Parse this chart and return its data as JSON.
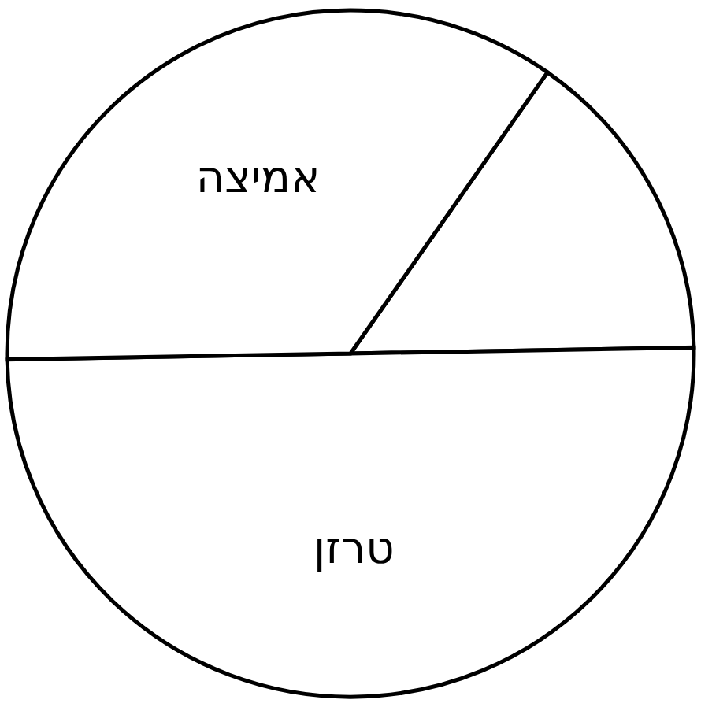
{
  "chart_data": {
    "type": "pie",
    "categories": [
      null,
      "טרזן",
      "אמיצה"
    ],
    "values": [
      15,
      50,
      35
    ],
    "colors": [
      "#ffffff",
      "#ffffff",
      "#ffffff"
    ]
  }
}
